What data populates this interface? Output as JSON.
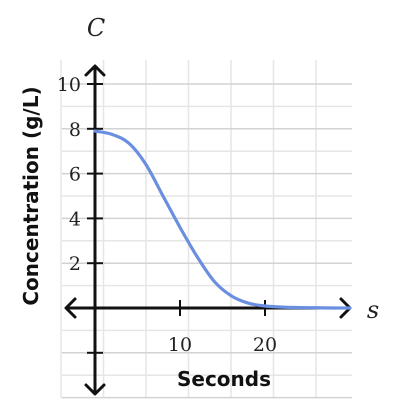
{
  "chart_data": {
    "type": "line",
    "xlabel": "Seconds",
    "ylabel": "Concentration (g/L)",
    "x_var": "s",
    "y_var": "C",
    "xlim": [
      0,
      30
    ],
    "ylim": [
      -4,
      10
    ],
    "x_ticks": [
      10,
      20
    ],
    "y_ticks": [
      2,
      4,
      6,
      8,
      10
    ],
    "x_tick_labels": [
      "10",
      "20"
    ],
    "y_tick_labels": [
      "2",
      "4",
      "6",
      "8",
      "10"
    ],
    "grid": true,
    "series": [
      {
        "color": "#6a8fe0",
        "x": [
          0,
          2,
          4,
          6,
          8,
          10,
          12,
          14,
          16,
          18,
          20,
          22,
          24,
          26,
          28,
          30
        ],
        "y": [
          7.9,
          7.75,
          7.35,
          6.4,
          5.0,
          3.6,
          2.3,
          1.2,
          0.55,
          0.22,
          0.09,
          0.04,
          0.02,
          0.01,
          0.0,
          0.0
        ]
      }
    ]
  }
}
